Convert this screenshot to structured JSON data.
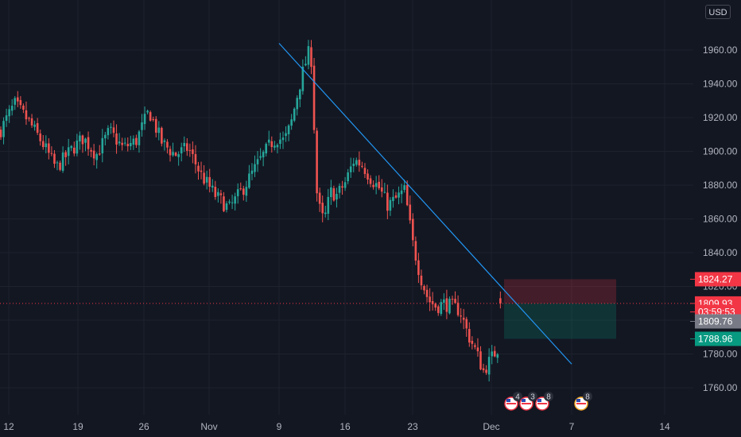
{
  "currency_label": "USD",
  "colors": {
    "background": "#131722",
    "grid": "#1e222d",
    "up": "#26a69a",
    "down": "#ef5350",
    "trendline": "#2196f3",
    "tag_red": "#f23645",
    "tag_gray": "#787b86",
    "tag_green": "#089981"
  },
  "chart_data": {
    "type": "candlestick",
    "title": "",
    "y_axis": {
      "side": "right",
      "ticks": [
        "1760.00",
        "1780.00",
        "1800.00",
        "1820.00",
        "1840.00",
        "1860.00",
        "1880.00",
        "1900.00",
        "1920.00",
        "1940.00",
        "1960.00"
      ],
      "range": [
        1743,
        1983
      ]
    },
    "x_axis": {
      "ticks": [
        "12",
        "19",
        "26",
        "Nov",
        "9",
        "16",
        "23",
        "Dec",
        "7",
        "14"
      ]
    },
    "price_path": [
      [
        "12",
        1912
      ],
      [
        "12",
        1928
      ],
      [
        "12",
        1918
      ],
      [
        "12",
        1905
      ],
      [
        "12",
        1890
      ],
      [
        "19",
        1900
      ],
      [
        "19",
        1908
      ],
      [
        "19",
        1898
      ],
      [
        "19",
        1912
      ],
      [
        "19",
        1902
      ],
      [
        "26",
        1906
      ],
      [
        "26",
        1924
      ],
      [
        "26",
        1905
      ],
      [
        "26",
        1898
      ],
      [
        "26",
        1902
      ],
      [
        "Nov",
        1886
      ],
      [
        "Nov",
        1874
      ],
      [
        "Nov",
        1866
      ],
      [
        "Nov",
        1878
      ],
      [
        "Nov",
        1892
      ],
      [
        "9",
        1905
      ],
      [
        "9",
        1908
      ],
      [
        "9",
        1906
      ],
      [
        "9",
        1916
      ],
      [
        "9",
        1934
      ],
      [
        "9",
        1950
      ],
      [
        "9",
        1962
      ],
      [
        "9",
        1870
      ],
      [
        "9",
        1858
      ],
      [
        "9",
        1876
      ],
      [
        "16",
        1874
      ],
      [
        "16",
        1882
      ],
      [
        "16",
        1895
      ],
      [
        "16",
        1892
      ],
      [
        "16",
        1884
      ],
      [
        "16",
        1878
      ],
      [
        "16",
        1868
      ],
      [
        "16",
        1872
      ],
      [
        "23",
        1877
      ],
      [
        "23",
        1846
      ],
      [
        "23",
        1826
      ],
      [
        "23",
        1812
      ],
      [
        "23",
        1808
      ],
      [
        "23",
        1810
      ],
      [
        "23",
        1808
      ],
      [
        "23",
        1806
      ],
      [
        "23",
        1792
      ],
      [
        "23",
        1782
      ],
      [
        "Dec",
        1770
      ],
      [
        "Dec",
        1785
      ],
      [
        "Dec",
        1800
      ],
      [
        "Dec",
        1815
      ],
      [
        "Dec",
        1809.93
      ]
    ],
    "trendline": {
      "start": [
        "9",
        1964
      ],
      "end": [
        "7",
        1774
      ]
    },
    "position": {
      "entry": 1809.93,
      "stop": 1824.27,
      "target": 1788.96,
      "span": [
        "Dec",
        "7"
      ]
    },
    "price_tags": [
      {
        "label": "1824.27",
        "value": 1824.27,
        "style": "red"
      },
      {
        "label": "1809.93",
        "value": 1809.93,
        "style": "red"
      },
      {
        "label": "03:59:53",
        "value": 1804.9,
        "style": "red"
      },
      {
        "label": "1809.76",
        "value": 1799.3,
        "style": "gray"
      },
      {
        "label": "1788.96",
        "value": 1788.96,
        "style": "green"
      }
    ],
    "event_badges": [
      {
        "count": "4"
      },
      {
        "count": "3"
      },
      {
        "count": "8"
      },
      {
        "count": "8"
      }
    ]
  }
}
